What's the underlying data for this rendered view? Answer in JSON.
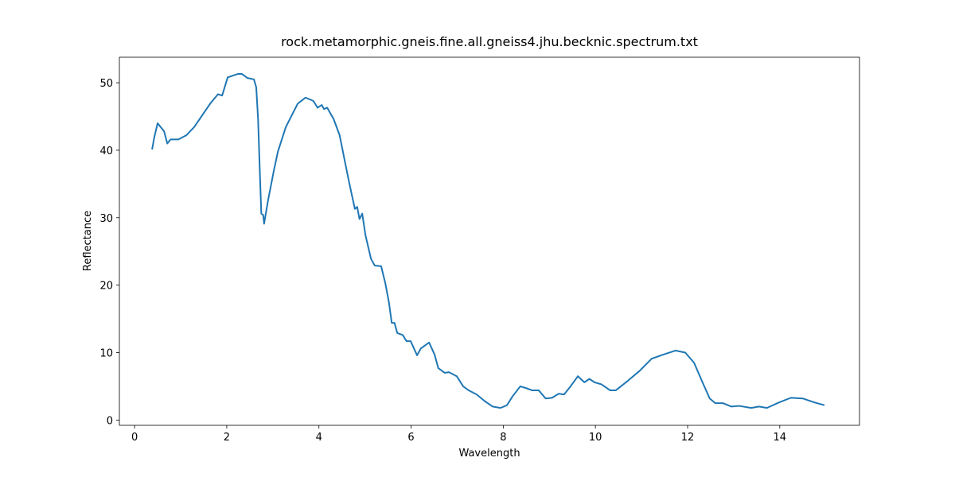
{
  "chart_data": {
    "type": "line",
    "title": "rock.metamorphic.gneis.fine.all.gneiss4.jhu.becknic.spectrum.txt",
    "x_label": "Wavelength",
    "y_label": "Reflectance",
    "color": "#1f77b4",
    "x": [
      0.38,
      0.43,
      0.5,
      0.57,
      0.64,
      0.71,
      0.78,
      0.95,
      1.12,
      1.29,
      1.47,
      1.64,
      1.81,
      1.9,
      2.02,
      2.24,
      2.33,
      2.45,
      2.59,
      2.64,
      2.68,
      2.72,
      2.75,
      2.79,
      2.81,
      2.9,
      3.02,
      3.11,
      3.28,
      3.45,
      3.54,
      3.71,
      3.88,
      3.97,
      4.06,
      4.11,
      4.18,
      4.32,
      4.45,
      4.57,
      4.66,
      4.78,
      4.83,
      4.88,
      4.94,
      5.01,
      5.13,
      5.21,
      5.35,
      5.44,
      5.52,
      5.58,
      5.64,
      5.7,
      5.82,
      5.9,
      5.99,
      6.13,
      6.21,
      6.39,
      6.51,
      6.59,
      6.73,
      6.82,
      6.99,
      7.13,
      7.25,
      7.42,
      7.6,
      7.77,
      7.94,
      8.08,
      8.2,
      8.37,
      8.51,
      8.63,
      8.77,
      8.92,
      9.06,
      9.2,
      9.32,
      9.46,
      9.62,
      9.76,
      9.87,
      9.98,
      10.13,
      10.32,
      10.44,
      10.7,
      10.96,
      11.22,
      11.47,
      11.74,
      11.95,
      12.14,
      12.31,
      12.48,
      12.6,
      12.77,
      12.95,
      13.12,
      13.38,
      13.55,
      13.72,
      13.98,
      14.24,
      14.5,
      14.76,
      14.97
    ],
    "values": [
      40.1,
      42,
      44,
      43.4,
      42.8,
      41,
      41.6,
      41.6,
      42.2,
      43.4,
      45.2,
      46.9,
      48.3,
      48.1,
      50.8,
      51.3,
      51.3,
      50.7,
      50.5,
      49.3,
      44.6,
      36.3,
      30.6,
      30.4,
      29.1,
      32.7,
      36.9,
      39.8,
      43.4,
      45.7,
      46.9,
      47.8,
      47.3,
      46.3,
      46.7,
      46.1,
      46.3,
      44.6,
      42.2,
      38.1,
      35.1,
      31.3,
      31.6,
      29.8,
      30.6,
      27.4,
      23.9,
      22.9,
      22.8,
      20.3,
      17.4,
      14.4,
      14.4,
      12.9,
      12.6,
      11.7,
      11.7,
      9.6,
      10.6,
      11.5,
      9.7,
      7.7,
      7.0,
      7.1,
      6.5,
      5.0,
      4.4,
      3.8,
      2.8,
      2.0,
      1.8,
      2.2,
      3.5,
      5.0,
      4.7,
      4.4,
      4.4,
      3.2,
      3.3,
      3.9,
      3.8,
      5.0,
      6.5,
      5.6,
      6.1,
      5.6,
      5.3,
      4.4,
      4.4,
      5.8,
      7.3,
      9.1,
      9.7,
      10.3,
      10.0,
      8.5,
      5.8,
      3.2,
      2.5,
      2.5,
      2.0,
      2.1,
      1.8,
      2.0,
      1.8,
      2.6,
      3.3,
      3.2,
      2.6,
      2.2
    ],
    "xlim": [
      -0.33,
      15.73
    ],
    "ylim": [
      -0.78,
      53.78
    ],
    "xticks": [
      0,
      2,
      4,
      6,
      8,
      10,
      12,
      14
    ],
    "yticks": [
      0,
      10,
      20,
      30,
      40,
      50
    ],
    "grid": false
  }
}
